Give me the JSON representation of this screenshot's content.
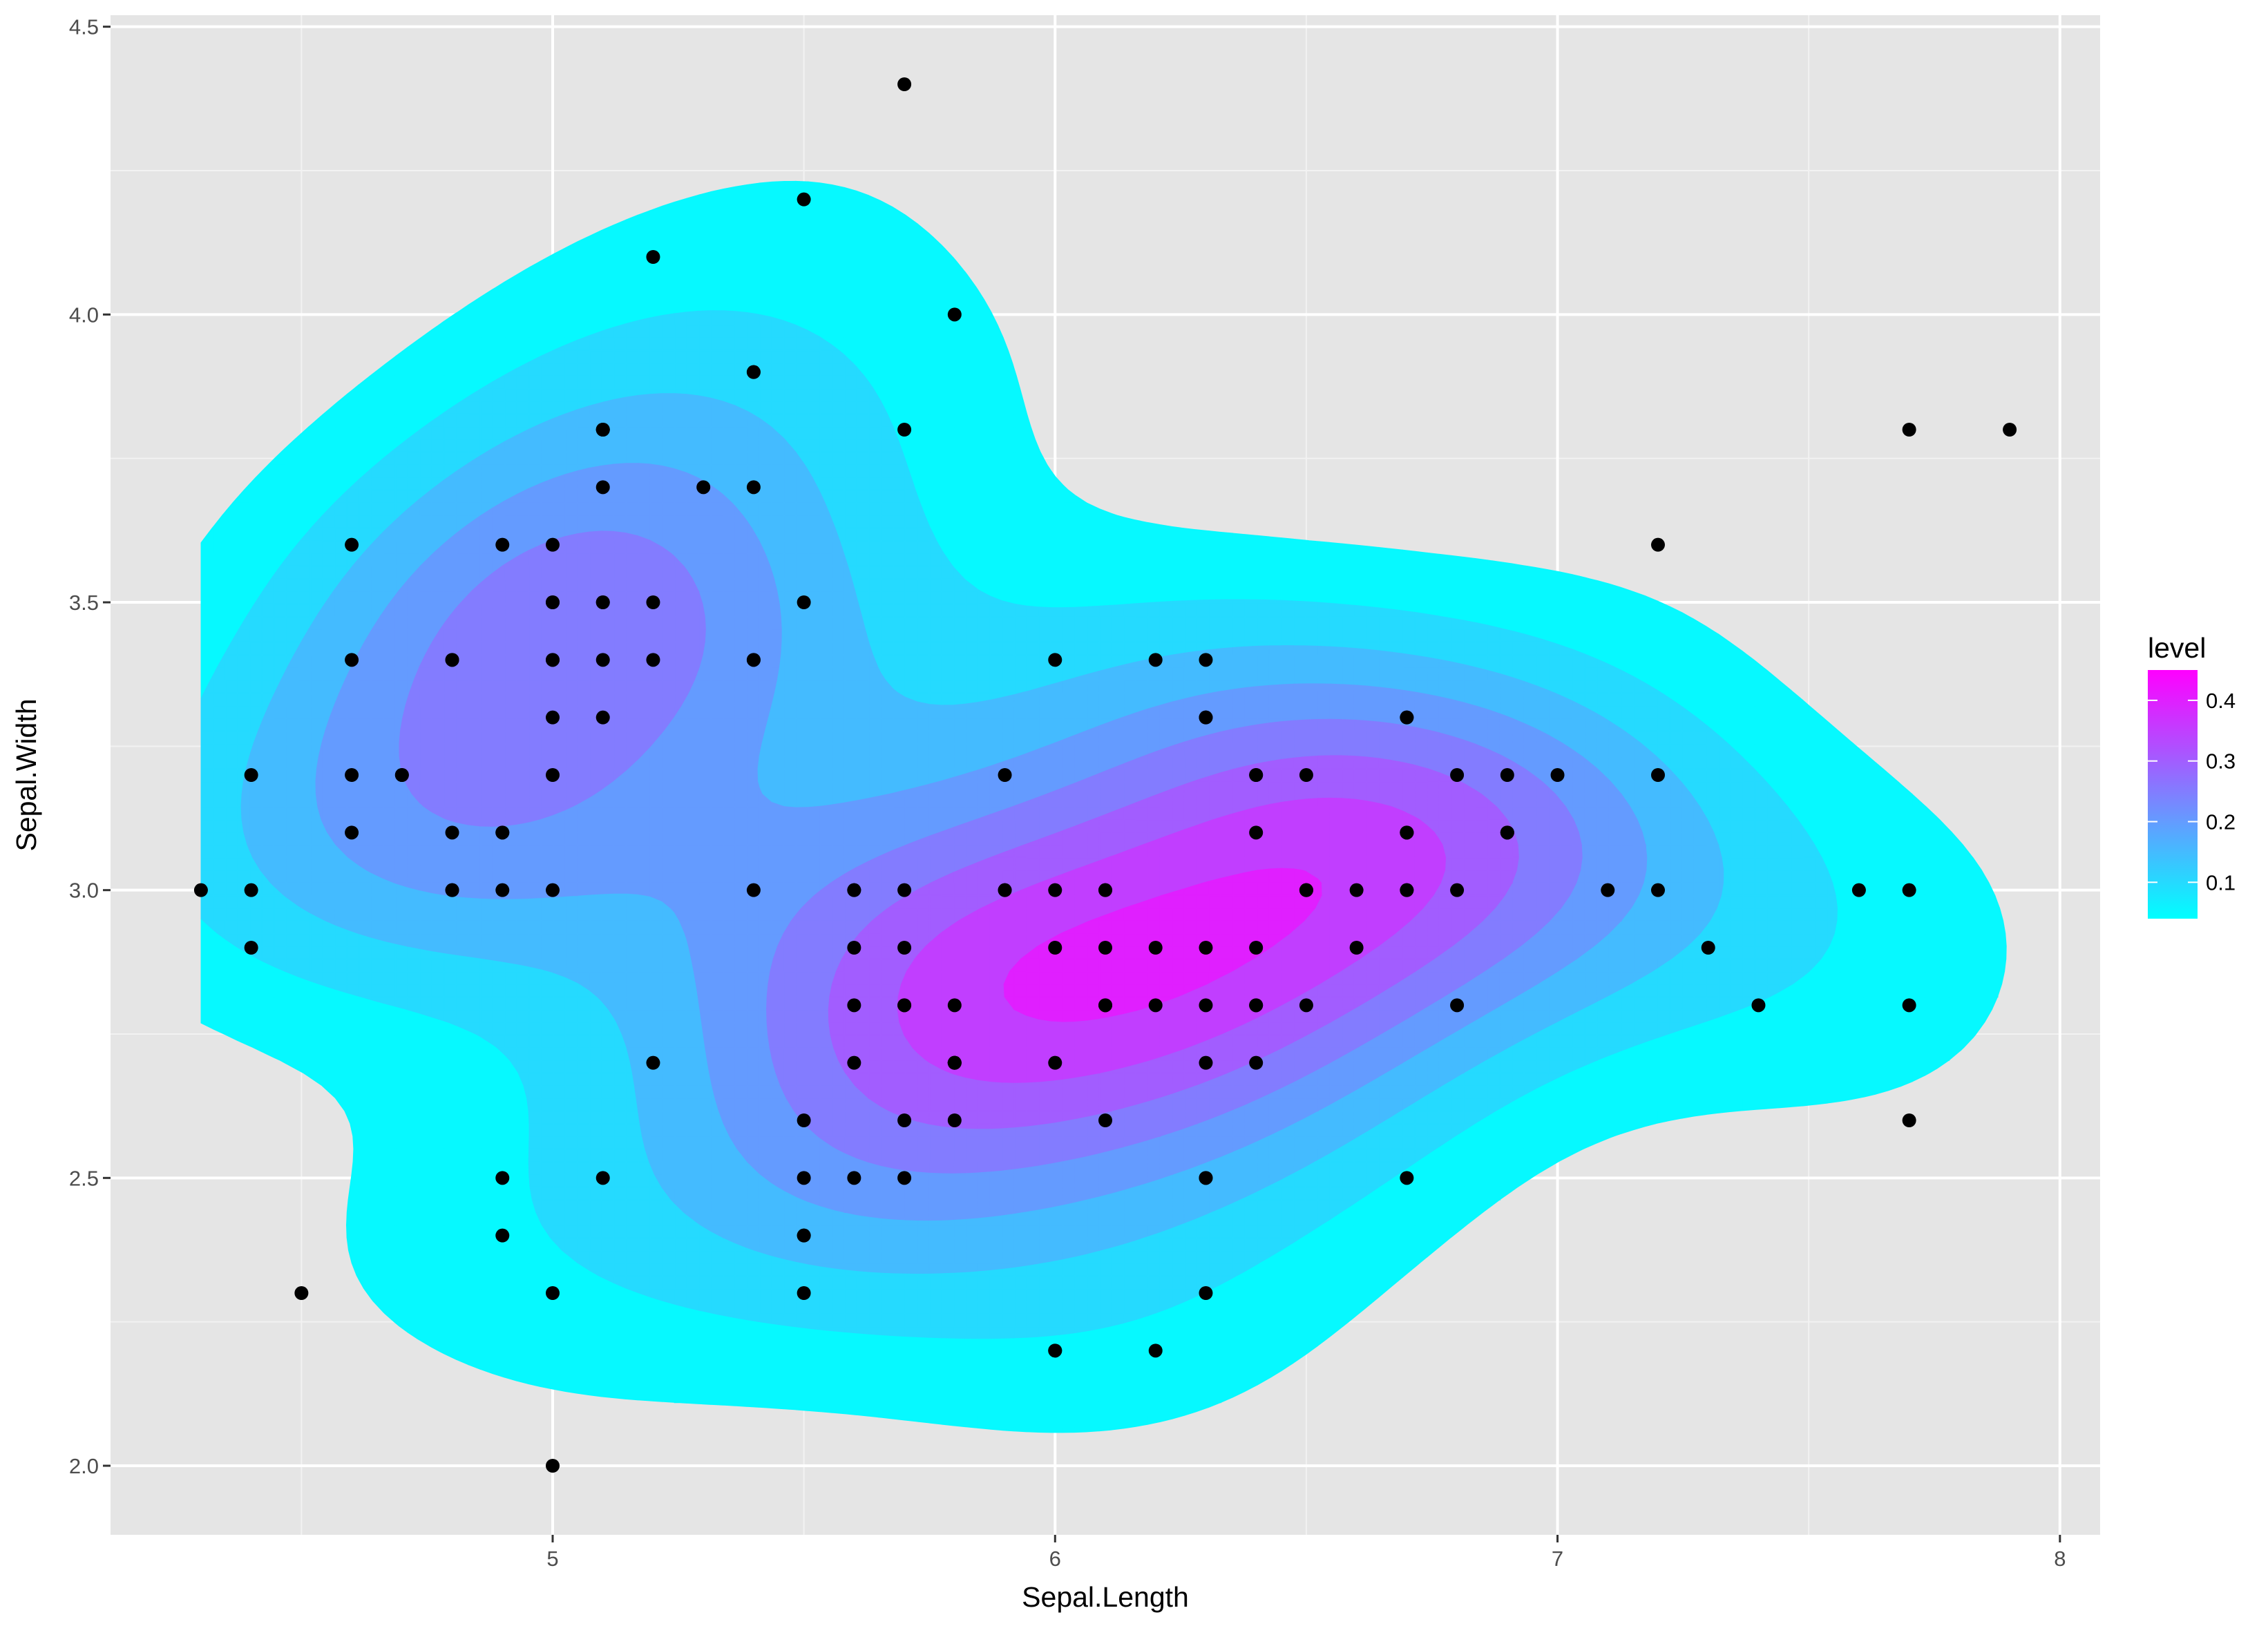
{
  "chart_data": {
    "type": "scatter",
    "subtype": "filled-density-contour",
    "xlabel": "Sepal.Length",
    "ylabel": "Sepal.Width",
    "xlim": [
      4.12,
      8.08
    ],
    "ylim": [
      1.88,
      4.52
    ],
    "x_ticks": [
      5,
      6,
      7,
      8
    ],
    "y_ticks": [
      2.0,
      2.5,
      3.0,
      3.5,
      4.0,
      4.5
    ],
    "x_tick_labels": [
      "5",
      "6",
      "7",
      "8"
    ],
    "y_tick_labels": [
      "2.0",
      "2.5",
      "3.0",
      "3.5",
      "4.0",
      "4.5"
    ],
    "grid": true,
    "background": "#e5e5e5",
    "point_color": "#000000",
    "legend": {
      "title": "level",
      "position": "right",
      "low_color": "#00ffff",
      "high_color": "#ff00ff",
      "range": [
        0.04,
        0.45
      ],
      "breaks": [
        0.1,
        0.2,
        0.3,
        0.4
      ],
      "labels": [
        "0.1",
        "0.2",
        "0.3",
        "0.4"
      ]
    },
    "density": {
      "levels": [
        0.05,
        0.1,
        0.15,
        0.2,
        0.25,
        0.3,
        0.35,
        0.4
      ],
      "bandwidth_x": 0.35,
      "bandwidth_y": 0.2,
      "domain_x": [
        4.3,
        7.9
      ],
      "domain_y": [
        2.0,
        4.4
      ]
    },
    "points": [
      [
        5.1,
        3.5
      ],
      [
        4.9,
        3.0
      ],
      [
        4.7,
        3.2
      ],
      [
        4.6,
        3.1
      ],
      [
        5.0,
        3.6
      ],
      [
        5.4,
        3.9
      ],
      [
        4.6,
        3.4
      ],
      [
        5.0,
        3.4
      ],
      [
        4.4,
        2.9
      ],
      [
        4.9,
        3.1
      ],
      [
        5.4,
        3.7
      ],
      [
        4.8,
        3.4
      ],
      [
        4.8,
        3.0
      ],
      [
        4.3,
        3.0
      ],
      [
        5.8,
        4.0
      ],
      [
        5.7,
        4.4
      ],
      [
        5.4,
        3.9
      ],
      [
        5.1,
        3.5
      ],
      [
        5.7,
        3.8
      ],
      [
        5.1,
        3.8
      ],
      [
        5.4,
        3.4
      ],
      [
        5.1,
        3.7
      ],
      [
        4.6,
        3.6
      ],
      [
        5.1,
        3.3
      ],
      [
        4.8,
        3.4
      ],
      [
        5.0,
        3.0
      ],
      [
        5.0,
        3.4
      ],
      [
        5.2,
        3.5
      ],
      [
        5.2,
        3.4
      ],
      [
        4.7,
        3.2
      ],
      [
        4.8,
        3.1
      ],
      [
        5.4,
        3.4
      ],
      [
        5.2,
        4.1
      ],
      [
        5.5,
        4.2
      ],
      [
        4.9,
        3.1
      ],
      [
        5.0,
        3.2
      ],
      [
        5.5,
        3.5
      ],
      [
        4.9,
        3.6
      ],
      [
        4.4,
        3.0
      ],
      [
        5.1,
        3.4
      ],
      [
        5.0,
        3.5
      ],
      [
        4.5,
        2.3
      ],
      [
        4.4,
        3.2
      ],
      [
        5.0,
        3.5
      ],
      [
        5.1,
        3.8
      ],
      [
        4.8,
        3.0
      ],
      [
        5.1,
        3.8
      ],
      [
        4.6,
        3.2
      ],
      [
        5.3,
        3.7
      ],
      [
        5.0,
        3.3
      ],
      [
        7.0,
        3.2
      ],
      [
        6.4,
        3.2
      ],
      [
        6.9,
        3.1
      ],
      [
        5.5,
        2.3
      ],
      [
        6.5,
        2.8
      ],
      [
        5.7,
        2.8
      ],
      [
        6.3,
        3.3
      ],
      [
        4.9,
        2.4
      ],
      [
        6.6,
        2.9
      ],
      [
        5.2,
        2.7
      ],
      [
        5.0,
        2.0
      ],
      [
        5.9,
        3.0
      ],
      [
        6.0,
        2.2
      ],
      [
        6.1,
        2.9
      ],
      [
        5.6,
        2.9
      ],
      [
        6.7,
        3.1
      ],
      [
        5.6,
        3.0
      ],
      [
        5.8,
        2.7
      ],
      [
        6.2,
        2.2
      ],
      [
        5.6,
        2.5
      ],
      [
        5.9,
        3.2
      ],
      [
        6.1,
        2.8
      ],
      [
        6.3,
        2.5
      ],
      [
        6.1,
        2.8
      ],
      [
        6.4,
        2.9
      ],
      [
        6.6,
        3.0
      ],
      [
        6.8,
        2.8
      ],
      [
        6.7,
        3.0
      ],
      [
        6.0,
        2.9
      ],
      [
        5.7,
        2.6
      ],
      [
        5.5,
        2.4
      ],
      [
        5.5,
        2.4
      ],
      [
        5.8,
        2.7
      ],
      [
        6.0,
        2.7
      ],
      [
        5.4,
        3.0
      ],
      [
        6.0,
        3.4
      ],
      [
        6.7,
        3.1
      ],
      [
        6.3,
        2.3
      ],
      [
        5.6,
        3.0
      ],
      [
        5.5,
        2.5
      ],
      [
        5.5,
        2.6
      ],
      [
        6.1,
        3.0
      ],
      [
        5.8,
        2.6
      ],
      [
        5.0,
        2.3
      ],
      [
        5.6,
        2.7
      ],
      [
        5.7,
        3.0
      ],
      [
        5.7,
        2.9
      ],
      [
        6.2,
        2.9
      ],
      [
        5.1,
        2.5
      ],
      [
        5.7,
        2.8
      ],
      [
        6.3,
        3.3
      ],
      [
        5.8,
        2.7
      ],
      [
        7.1,
        3.0
      ],
      [
        6.3,
        2.9
      ],
      [
        6.5,
        3.0
      ],
      [
        7.6,
        3.0
      ],
      [
        4.9,
        2.5
      ],
      [
        7.3,
        2.9
      ],
      [
        6.7,
        2.5
      ],
      [
        7.2,
        3.6
      ],
      [
        6.5,
        3.2
      ],
      [
        6.4,
        2.7
      ],
      [
        6.8,
        3.0
      ],
      [
        5.7,
        2.5
      ],
      [
        5.8,
        2.8
      ],
      [
        6.4,
        3.2
      ],
      [
        6.5,
        3.0
      ],
      [
        7.7,
        3.8
      ],
      [
        7.7,
        2.6
      ],
      [
        6.0,
        2.2
      ],
      [
        6.9,
        3.2
      ],
      [
        5.6,
        2.8
      ],
      [
        7.7,
        2.8
      ],
      [
        6.3,
        2.7
      ],
      [
        6.7,
        3.3
      ],
      [
        7.2,
        3.2
      ],
      [
        6.2,
        2.8
      ],
      [
        6.1,
        3.0
      ],
      [
        6.4,
        2.8
      ],
      [
        7.2,
        3.0
      ],
      [
        7.4,
        2.8
      ],
      [
        7.9,
        3.8
      ],
      [
        6.4,
        2.8
      ],
      [
        6.3,
        2.8
      ],
      [
        6.1,
        2.6
      ],
      [
        7.7,
        3.0
      ],
      [
        6.3,
        3.4
      ],
      [
        6.4,
        3.1
      ],
      [
        6.0,
        3.0
      ],
      [
        6.9,
        3.1
      ],
      [
        6.7,
        3.1
      ],
      [
        6.9,
        3.1
      ],
      [
        5.8,
        2.7
      ],
      [
        6.8,
        3.2
      ],
      [
        6.7,
        3.3
      ],
      [
        6.7,
        3.0
      ],
      [
        6.3,
        2.5
      ],
      [
        6.5,
        3.0
      ],
      [
        6.2,
        3.4
      ],
      [
        5.9,
        3.0
      ]
    ]
  }
}
